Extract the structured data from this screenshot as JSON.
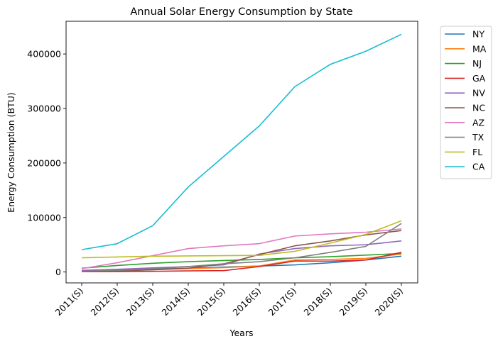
{
  "chart_data": {
    "type": "line",
    "title": "Annual Solar Energy Consumption by State",
    "xlabel": "Years",
    "ylabel": "Energy Consumption (BTU)",
    "categories": [
      "2011(S)",
      "2012(S)",
      "2013(S)",
      "2014(S)",
      "2015(S)",
      "2016(S)",
      "2017(S)",
      "2018(S)",
      "2019(S)",
      "2020(S)"
    ],
    "yticks": [
      0,
      100000,
      200000,
      300000,
      400000
    ],
    "ylim": [
      -20000,
      460000
    ],
    "grid": false,
    "legend_position": "outside-top-right",
    "series": [
      {
        "name": "NY",
        "color": "#1f77b4",
        "values": [
          2500,
          3500,
          5000,
          7000,
          9000,
          11000,
          13000,
          17000,
          22000,
          29000
        ]
      },
      {
        "name": "MA",
        "color": "#ff7f0e",
        "values": [
          1500,
          3000,
          4500,
          6000,
          8000,
          11000,
          22000,
          23000,
          25000,
          33000
        ]
      },
      {
        "name": "NJ",
        "color": "#2ca02c",
        "values": [
          7000,
          12000,
          16000,
          19000,
          21000,
          23000,
          26000,
          28000,
          31000,
          34000
        ]
      },
      {
        "name": "GA",
        "color": "#d62728",
        "values": [
          500,
          700,
          1200,
          2000,
          2500,
          10000,
          20000,
          20000,
          22000,
          36000
        ]
      },
      {
        "name": "NV",
        "color": "#9467bd",
        "values": [
          3000,
          5000,
          7500,
          10000,
          13000,
          33000,
          43000,
          48000,
          50000,
          57000
        ]
      },
      {
        "name": "NC",
        "color": "#8c564b",
        "values": [
          1000,
          2000,
          4000,
          7000,
          15000,
          32000,
          48000,
          57000,
          68000,
          76000
        ]
      },
      {
        "name": "AZ",
        "color": "#e377c2",
        "values": [
          6000,
          17000,
          30000,
          43000,
          48000,
          52000,
          66000,
          70000,
          73000,
          79000
        ]
      },
      {
        "name": "TX",
        "color": "#7f7f7f",
        "values": [
          1000,
          3000,
          6000,
          10000,
          15000,
          19000,
          26000,
          36000,
          47000,
          89000
        ]
      },
      {
        "name": "FL",
        "color": "#bcbd22",
        "values": [
          26000,
          27500,
          29000,
          29500,
          30000,
          30500,
          38000,
          53000,
          69000,
          94000
        ]
      },
      {
        "name": "CA",
        "color": "#17becf",
        "values": [
          41000,
          52000,
          85000,
          156000,
          212000,
          268000,
          340000,
          381000,
          405000,
          436000
        ]
      }
    ]
  }
}
